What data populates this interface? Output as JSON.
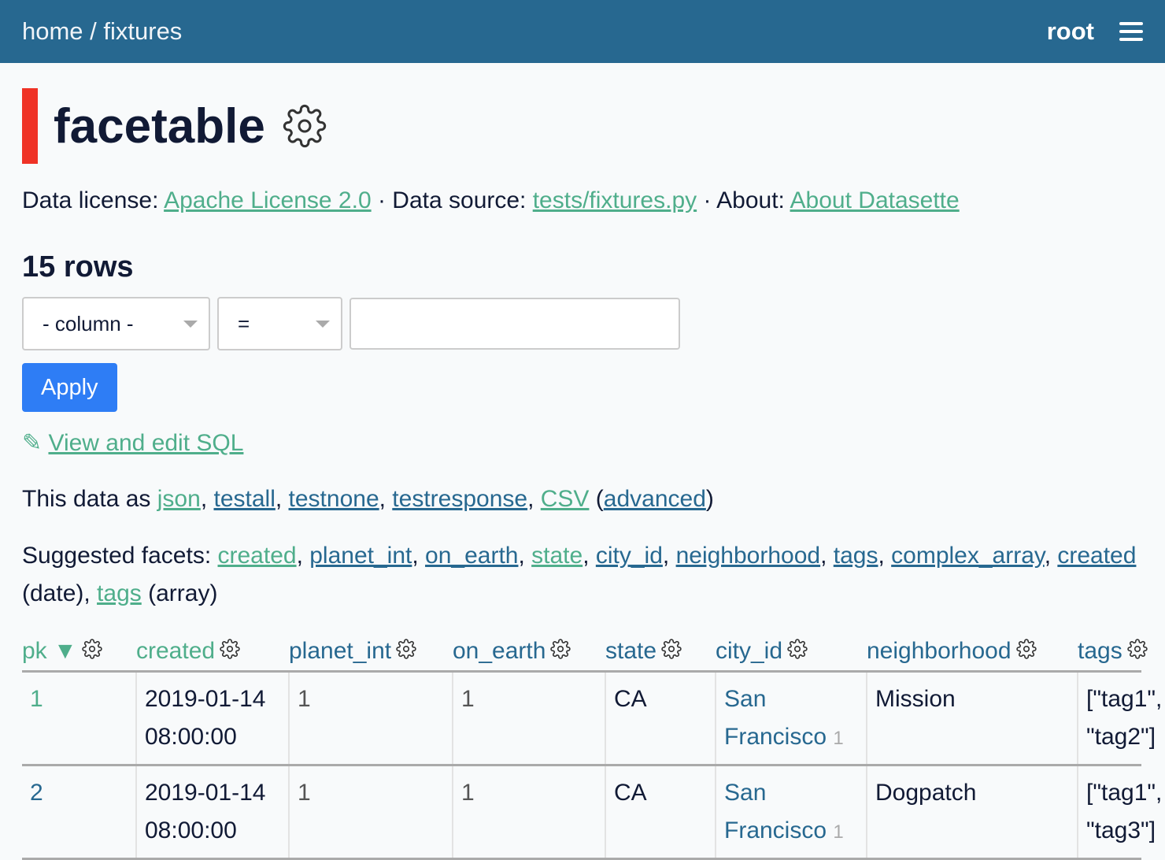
{
  "header": {
    "home": "home",
    "sep": " / ",
    "db": "fixtures",
    "user": "root"
  },
  "title": "facetable",
  "meta": {
    "license_label": "Data license: ",
    "license": "Apache License 2.0",
    "source_label": " · Data source: ",
    "source": "tests/fixtures.py",
    "about_label": " · About: ",
    "about": "About Datasette"
  },
  "row_count": "15 rows",
  "filter": {
    "column": "- column -",
    "op": "=",
    "value": "",
    "apply": "Apply"
  },
  "sql_link": "View and edit SQL",
  "export": {
    "prefix": "This data as ",
    "json": "json",
    "testall": "testall",
    "testnone": "testnone",
    "testresponse": "testresponse",
    "csv": "CSV",
    "advanced": "advanced"
  },
  "facets": {
    "prefix": "Suggested facets: ",
    "items": [
      "created",
      "planet_int",
      "on_earth",
      "state",
      "city_id",
      "neighborhood",
      "tags",
      "complex_array"
    ],
    "created_date": "created",
    "date_suffix": " (date), ",
    "tags_array": "tags",
    "array_suffix": " (array)"
  },
  "columns": [
    "pk",
    "created",
    "planet_int",
    "on_earth",
    "state",
    "city_id",
    "neighborhood",
    "tags"
  ],
  "sort_indicator": "▼",
  "rows": [
    {
      "pk": "1",
      "created": "2019-01-14 08:00:00",
      "planet_int": "1",
      "on_earth": "1",
      "state": "CA",
      "city": "San Francisco",
      "city_id": "1",
      "neighborhood": "Mission",
      "tags": "[\"tag1\", \"tag2\"]"
    },
    {
      "pk": "2",
      "created": "2019-01-14 08:00:00",
      "planet_int": "1",
      "on_earth": "1",
      "state": "CA",
      "city": "San Francisco",
      "city_id": "1",
      "neighborhood": "Dogpatch",
      "tags": "[\"tag1\", \"tag3\"]"
    }
  ]
}
